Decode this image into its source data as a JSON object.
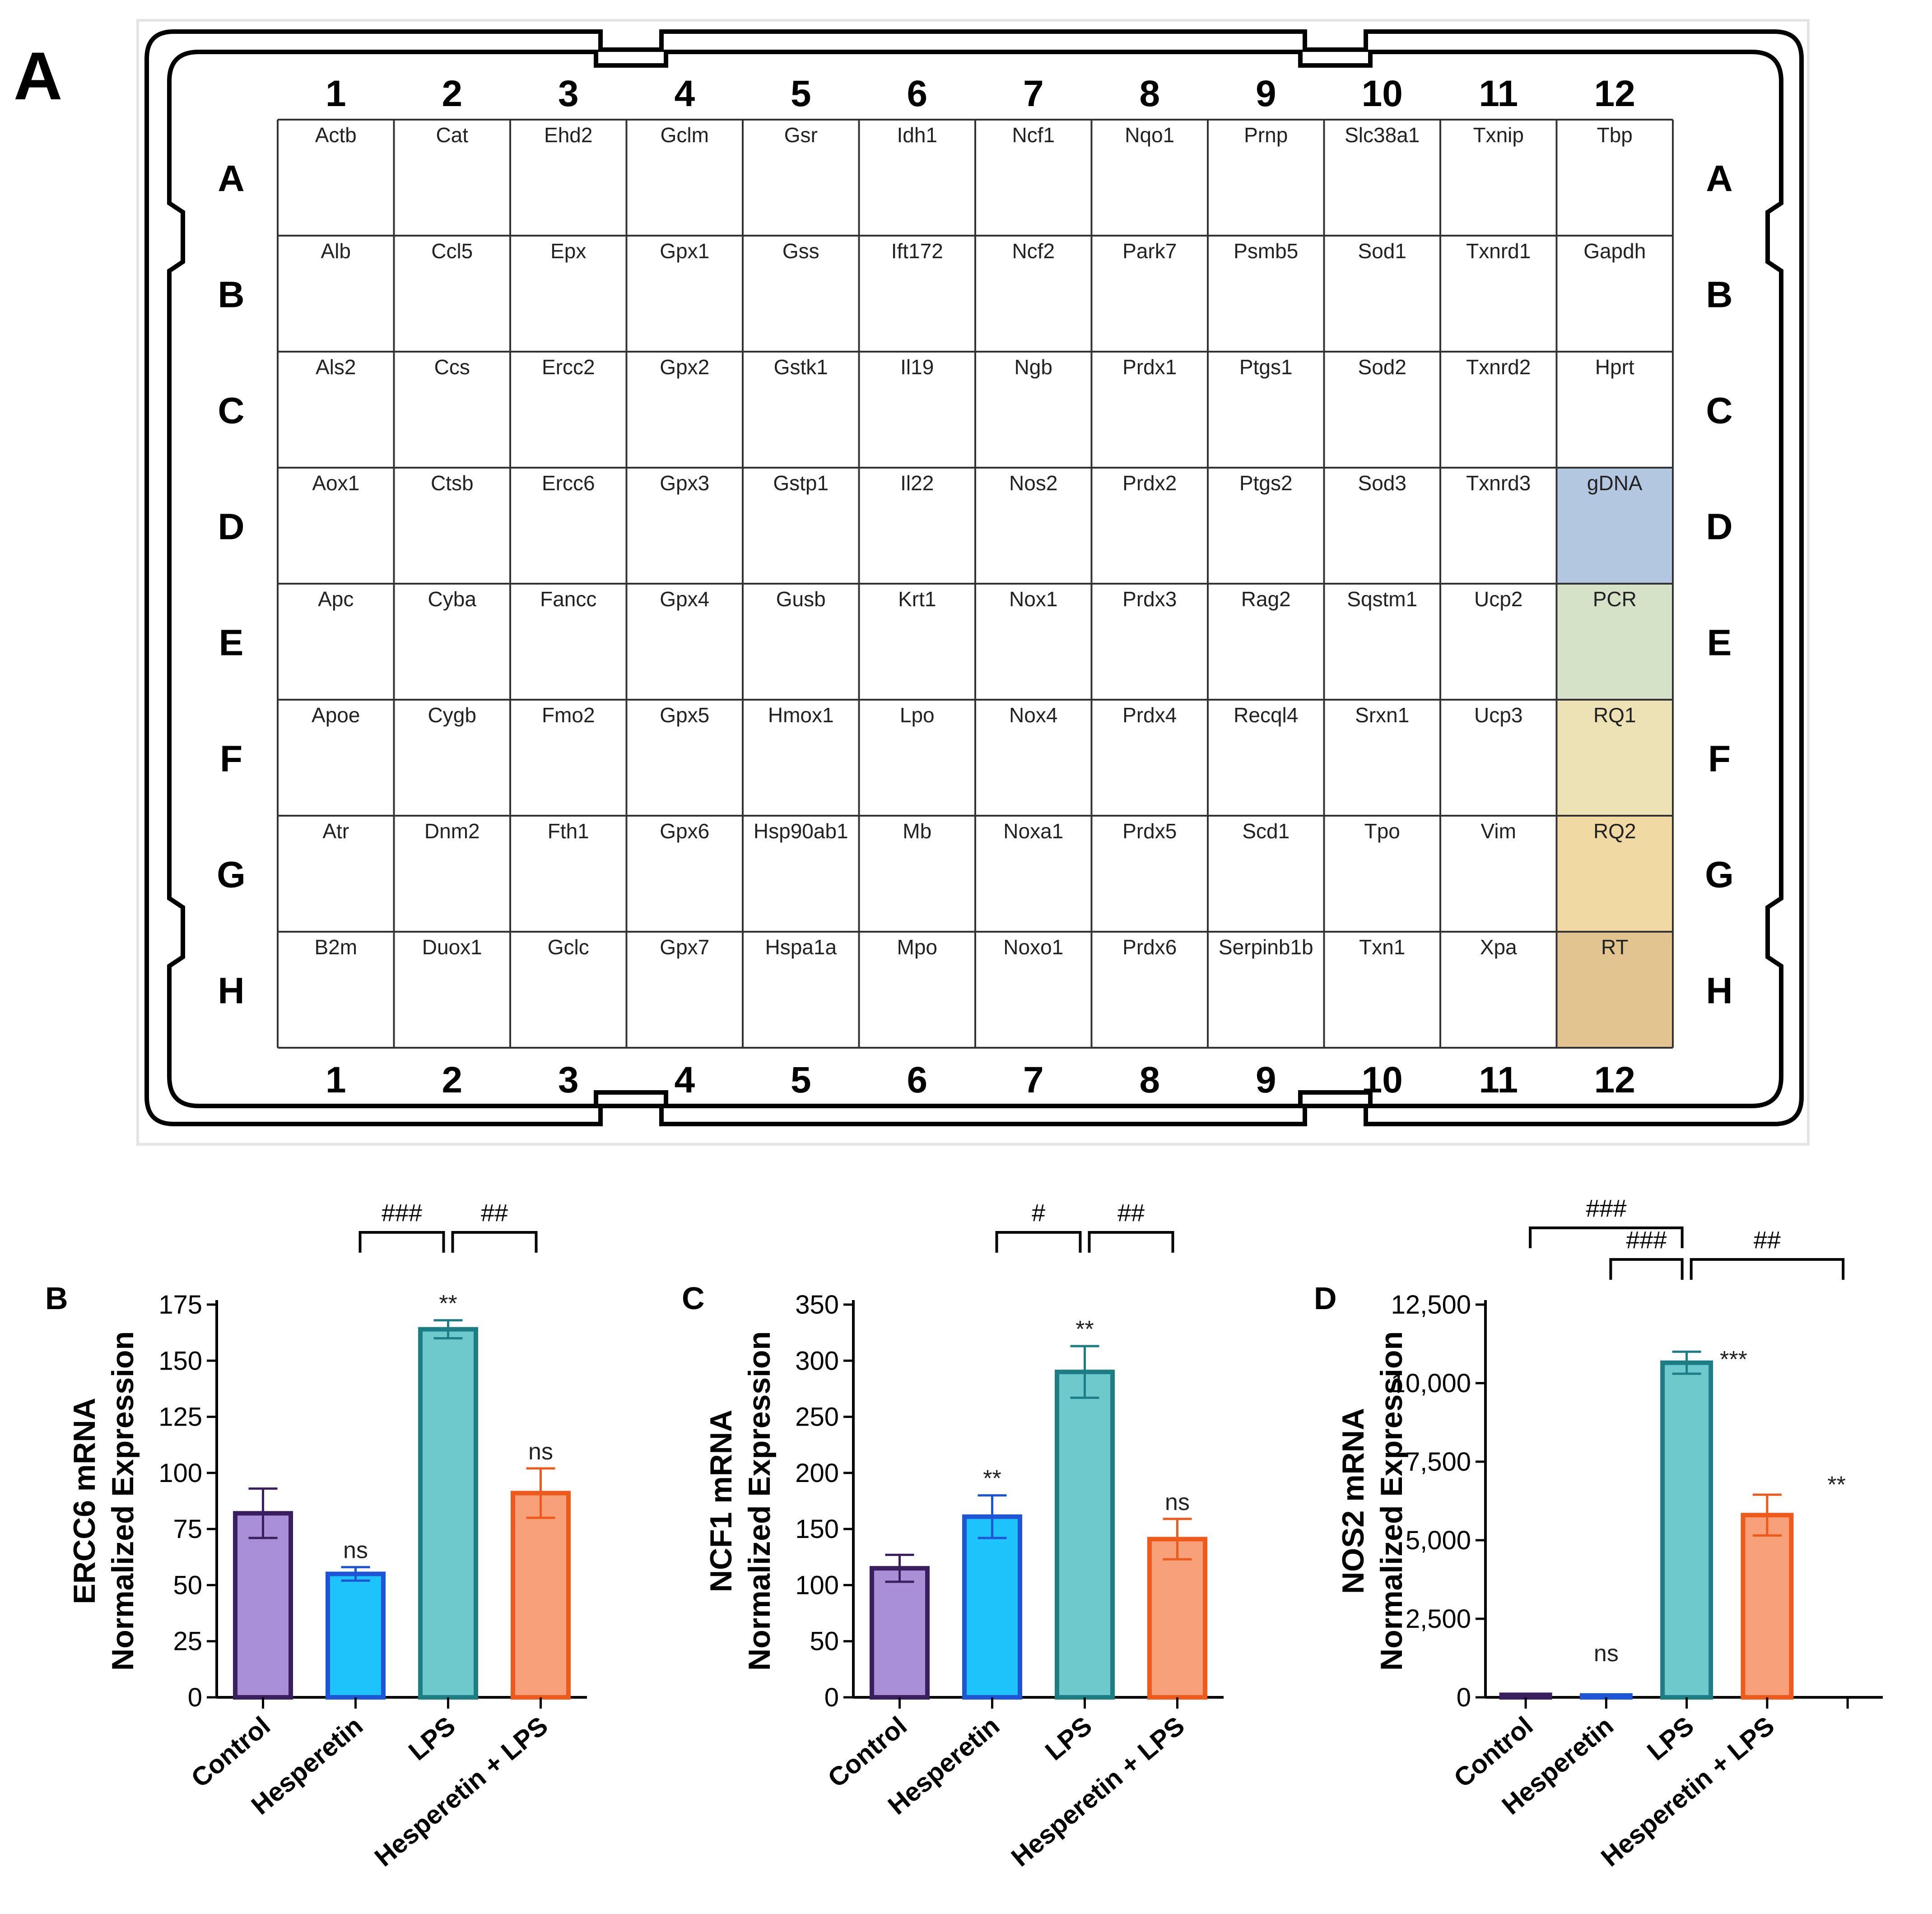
{
  "figure": {
    "panel_letters": [
      "A",
      "B",
      "C",
      "D"
    ]
  },
  "plate": {
    "columns": [
      "1",
      "2",
      "3",
      "4",
      "5",
      "6",
      "7",
      "8",
      "9",
      "10",
      "11",
      "12"
    ],
    "rows": [
      "A",
      "B",
      "C",
      "D",
      "E",
      "F",
      "G",
      "H"
    ],
    "genes": [
      [
        "Actb",
        "Cat",
        "Ehd2",
        "Gclm",
        "Gsr",
        "Idh1",
        "Ncf1",
        "Nqo1",
        "Prnp",
        "Slc38a1",
        "Txnip",
        "Tbp"
      ],
      [
        "Alb",
        "Ccl5",
        "Epx",
        "Gpx1",
        "Gss",
        "Ift172",
        "Ncf2",
        "Park7",
        "Psmb5",
        "Sod1",
        "Txnrd1",
        "Gapdh"
      ],
      [
        "Als2",
        "Ccs",
        "Ercc2",
        "Gpx2",
        "Gstk1",
        "Il19",
        "Ngb",
        "Prdx1",
        "Ptgs1",
        "Sod2",
        "Txnrd2",
        "Hprt"
      ],
      [
        "Aox1",
        "Ctsb",
        "Ercc6",
        "Gpx3",
        "Gstp1",
        "Il22",
        "Nos2",
        "Prdx2",
        "Ptgs2",
        "Sod3",
        "Txnrd3",
        "gDNA"
      ],
      [
        "Apc",
        "Cyba",
        "Fancc",
        "Gpx4",
        "Gusb",
        "Krt1",
        "Nox1",
        "Prdx3",
        "Rag2",
        "Sqstm1",
        "Ucp2",
        "PCR"
      ],
      [
        "Apoe",
        "Cygb",
        "Fmo2",
        "Gpx5",
        "Hmox1",
        "Lpo",
        "Nox4",
        "Prdx4",
        "Recql4",
        "Srxn1",
        "Ucp3",
        "RQ1"
      ],
      [
        "Atr",
        "Dnm2",
        "Fth1",
        "Gpx6",
        "Hsp90ab1",
        "Mb",
        "Noxa1",
        "Prdx5",
        "Scd1",
        "Tpo",
        "Vim",
        "RQ2"
      ],
      [
        "B2m",
        "Duox1",
        "Gclc",
        "Gpx7",
        "Hspa1a",
        "Mpo",
        "Noxo1",
        "Prdx6",
        "Serpinb1b",
        "Txn1",
        "Xpa",
        "RT"
      ]
    ],
    "control_colors": [
      "#b4c7e1",
      "#d6e2c8",
      "#ece2b6",
      "#f1d9a4",
      "#e1c48f"
    ]
  },
  "chart_data": [
    {
      "panel": "B",
      "type": "bar",
      "categories": [
        "Control",
        "Hesperetin",
        "LPS",
        "Hesperetin + LPS"
      ],
      "values": [
        82,
        55,
        164,
        91
      ],
      "errors": [
        11,
        3,
        4,
        11
      ],
      "colors": {
        "fill": [
          "#a88fd6",
          "#1ec3fb",
          "#6ec9cc",
          "#f7a07a"
        ],
        "stroke": [
          "#3a1f5e",
          "#1d55d6",
          "#1d7c84",
          "#ee5a1c"
        ]
      },
      "ylabel_line1": "ERCC6 mRNA",
      "ylabel_line2": "Normalized Expression",
      "yticks": [
        "0",
        "25",
        "50",
        "75",
        "100",
        "125",
        "150",
        "175"
      ],
      "ylim": [
        0,
        175
      ],
      "annotations": [
        {
          "bar": 1,
          "text": "ns"
        },
        {
          "bar": 2,
          "text": "**"
        },
        {
          "bar": 3,
          "text": "ns"
        }
      ],
      "brackets": [
        {
          "from": 1,
          "to": 2,
          "text": "###"
        },
        {
          "from": 2,
          "to": 3,
          "text": "##"
        }
      ]
    },
    {
      "panel": "C",
      "type": "bar",
      "categories": [
        "Control",
        "Hesperetin",
        "LPS",
        "Hesperetin + LPS"
      ],
      "values": [
        115,
        161,
        290,
        141
      ],
      "errors": [
        12,
        19,
        23,
        18
      ],
      "colors": {
        "fill": [
          "#a88fd6",
          "#1ec3fb",
          "#6ec9cc",
          "#f7a07a"
        ],
        "stroke": [
          "#3a1f5e",
          "#1d55d6",
          "#1d7c84",
          "#ee5a1c"
        ]
      },
      "ylabel_line1": "NCF1 mRNA",
      "ylabel_line2": "Normalized Expression",
      "yticks": [
        "0",
        "50",
        "100",
        "150",
        "200",
        "250",
        "300",
        "350"
      ],
      "ylim": [
        0,
        350
      ],
      "annotations": [
        {
          "bar": 1,
          "text": "**"
        },
        {
          "bar": 2,
          "text": "**"
        },
        {
          "bar": 3,
          "text": "ns"
        }
      ],
      "brackets": [
        {
          "from": 1,
          "to": 2,
          "text": "#"
        },
        {
          "from": 2,
          "to": 3,
          "text": "##"
        }
      ]
    },
    {
      "panel": "D",
      "type": "bar",
      "categories": [
        "Control",
        "Hesperetin",
        "LPS",
        "Hesperetin + LPS"
      ],
      "values": [
        80,
        60,
        10650,
        5800
      ],
      "errors": [
        20,
        20,
        350,
        650
      ],
      "colors": {
        "fill": [
          "#a88fd6",
          "#1ec3fb",
          "#6ec9cc",
          "#f7a07a"
        ],
        "stroke": [
          "#3a1f5e",
          "#1d55d6",
          "#1d7c84",
          "#ee5a1c"
        ]
      },
      "ylabel_line1": "NOS2 mRNA",
      "ylabel_line2": "Normalized Expression",
      "yticks": [
        "0",
        "2,500",
        "5,000",
        "7,500",
        "10,000",
        "12,500"
      ],
      "ylim": [
        0,
        12500
      ],
      "annotations": [
        {
          "bar": 1,
          "text": "ns"
        },
        {
          "bar": 2,
          "text": "***"
        },
        {
          "bar": 3,
          "text": "**"
        }
      ],
      "brackets": [
        {
          "from": 0,
          "to": 2,
          "text": "###"
        },
        {
          "from": 1,
          "to": 2,
          "text": "###"
        },
        {
          "from": 2,
          "to": 4,
          "text": "##"
        }
      ]
    }
  ]
}
